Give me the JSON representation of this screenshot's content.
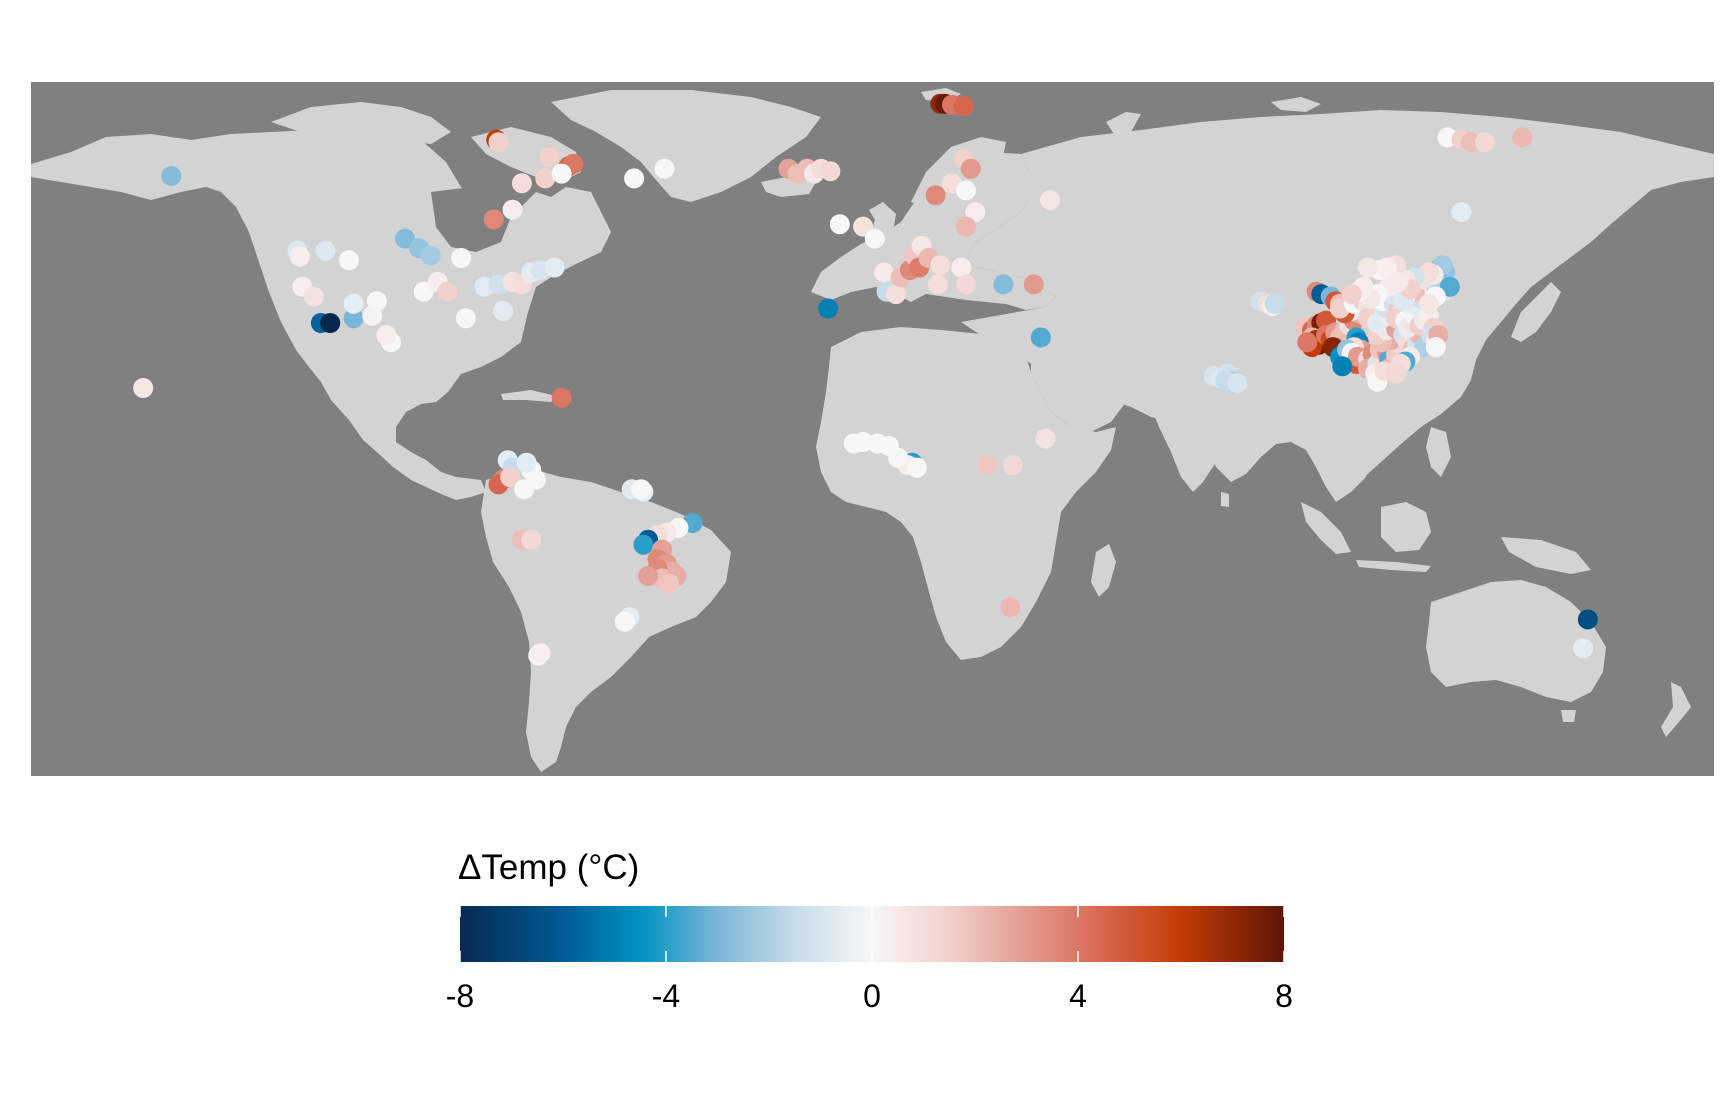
{
  "map": {
    "background_color": "#808080",
    "land_color": "#d3d3d3",
    "projection": "equirectangular",
    "lon_range": [
      -180,
      180
    ],
    "lat_range": [
      -60,
      84
    ]
  },
  "legend": {
    "title": "ΔTemp (°C)",
    "ticks": [
      "-8",
      "-4",
      "0",
      "4",
      "8"
    ],
    "range": [
      -8,
      8
    ],
    "stops": [
      {
        "value": -8,
        "color": "#08294f"
      },
      {
        "value": -6,
        "color": "#005b96"
      },
      {
        "value": -4.5,
        "color": "#0092c2"
      },
      {
        "value": -3,
        "color": "#7bb6d8"
      },
      {
        "value": -1.5,
        "color": "#c7dcea"
      },
      {
        "value": 0,
        "color": "#f7f7f7"
      },
      {
        "value": 1.5,
        "color": "#f2d0cc"
      },
      {
        "value": 3,
        "color": "#e29a8f"
      },
      {
        "value": 4.5,
        "color": "#d8664e"
      },
      {
        "value": 6,
        "color": "#c43c05"
      },
      {
        "value": 8,
        "color": "#5e1508"
      }
    ]
  },
  "points": [
    {
      "lon": -150,
      "lat": 64.5,
      "v": -2.8
    },
    {
      "lon": -156,
      "lat": 20.5,
      "v": 0.6
    },
    {
      "lon": -123,
      "lat": 49,
      "v": -0.8
    },
    {
      "lon": -122.5,
      "lat": 47.8,
      "v": 0.4
    },
    {
      "lon": -117,
      "lat": 49,
      "v": -0.8
    },
    {
      "lon": -112,
      "lat": 47,
      "v": 0
    },
    {
      "lon": -122,
      "lat": 41.5,
      "v": 0.4
    },
    {
      "lon": -119.5,
      "lat": 39.5,
      "v": 0.8
    },
    {
      "lon": -118,
      "lat": 34,
      "v": -5.8
    },
    {
      "lon": -116,
      "lat": 34,
      "v": -8
    },
    {
      "lon": -111,
      "lat": 35,
      "v": -3
    },
    {
      "lon": -111,
      "lat": 38,
      "v": -0.5
    },
    {
      "lon": -107,
      "lat": 35.5,
      "v": 0.2
    },
    {
      "lon": -106,
      "lat": 38.5,
      "v": 0
    },
    {
      "lon": -103,
      "lat": 30,
      "v": 0
    },
    {
      "lon": -104,
      "lat": 31.5,
      "v": 0.4
    },
    {
      "lon": -100,
      "lat": 51.5,
      "v": -2.8
    },
    {
      "lon": -97,
      "lat": 49.5,
      "v": -2.5
    },
    {
      "lon": -94.5,
      "lat": 48,
      "v": -2.2
    },
    {
      "lon": -96,
      "lat": 40.5,
      "v": 0
    },
    {
      "lon": -93,
      "lat": 42.5,
      "v": 0.4
    },
    {
      "lon": -91,
      "lat": 40.5,
      "v": 1.5
    },
    {
      "lon": -88,
      "lat": 47.5,
      "v": 0
    },
    {
      "lon": -87,
      "lat": 35,
      "v": 0
    },
    {
      "lon": -83,
      "lat": 41.5,
      "v": -0.7
    },
    {
      "lon": -80,
      "lat": 42,
      "v": -1.2
    },
    {
      "lon": -77,
      "lat": 42.5,
      "v": 0.8
    },
    {
      "lon": -75,
      "lat": 42,
      "v": 1
    },
    {
      "lon": -73,
      "lat": 44.5,
      "v": -0.5
    },
    {
      "lon": -71,
      "lat": 45,
      "v": -1
    },
    {
      "lon": -68,
      "lat": 45.5,
      "v": -0.6
    },
    {
      "lon": -79,
      "lat": 36.5,
      "v": -0.7
    },
    {
      "lon": -81,
      "lat": 55.5,
      "v": 3.5
    },
    {
      "lon": -77,
      "lat": 57.5,
      "v": 0.4
    },
    {
      "lon": -66.5,
      "lat": 18.5,
      "v": 4
    },
    {
      "lon": -75,
      "lat": 63,
      "v": 1
    },
    {
      "lon": -70,
      "lat": 64,
      "v": 1.5
    },
    {
      "lon": -65,
      "lat": 66.5,
      "v": 4.5
    },
    {
      "lon": -64,
      "lat": 67,
      "v": 4
    },
    {
      "lon": -66.5,
      "lat": 65,
      "v": 0
    },
    {
      "lon": -80.5,
      "lat": 72,
      "v": 6
    },
    {
      "lon": -80,
      "lat": 71.5,
      "v": 1.5
    },
    {
      "lon": -69,
      "lat": 68.5,
      "v": 1.5
    },
    {
      "lon": -51,
      "lat": 64,
      "v": 0
    },
    {
      "lon": -44.5,
      "lat": 66,
      "v": 0
    },
    {
      "lon": -18,
      "lat": 66,
      "v": 2.8
    },
    {
      "lon": -16,
      "lat": 65,
      "v": 2
    },
    {
      "lon": -14,
      "lat": 66,
      "v": 2
    },
    {
      "lon": -12.5,
      "lat": 65,
      "v": 0.5
    },
    {
      "lon": -11,
      "lat": 66,
      "v": 1
    },
    {
      "lon": -9,
      "lat": 65.5,
      "v": 1.2
    },
    {
      "lon": -9.5,
      "lat": 37,
      "v": -5
    },
    {
      "lon": -7,
      "lat": 54.5,
      "v": 0
    },
    {
      "lon": -2,
      "lat": 54,
      "v": 0.8
    },
    {
      "lon": 0.5,
      "lat": 51.5,
      "v": 0
    },
    {
      "lon": 2.5,
      "lat": 44.5,
      "v": 0.5
    },
    {
      "lon": 3,
      "lat": 40.5,
      "v": -1.5
    },
    {
      "lon": 5,
      "lat": 40,
      "v": 1
    },
    {
      "lon": 6,
      "lat": 43.5,
      "v": 2
    },
    {
      "lon": 8,
      "lat": 45,
      "v": 3.5
    },
    {
      "lon": 9,
      "lat": 48,
      "v": 1.8
    },
    {
      "lon": 10,
      "lat": 45.5,
      "v": 3.8
    },
    {
      "lon": 10.5,
      "lat": 50,
      "v": 0.6
    },
    {
      "lon": 12,
      "lat": 47.5,
      "v": 2.2
    },
    {
      "lon": 14,
      "lat": 42,
      "v": 1
    },
    {
      "lon": 14.5,
      "lat": 46,
      "v": 1
    },
    {
      "lon": 13.5,
      "lat": 60.5,
      "v": 3.5
    },
    {
      "lon": 17,
      "lat": 63,
      "v": 1
    },
    {
      "lon": 19.5,
      "lat": 68,
      "v": 1.5
    },
    {
      "lon": 21,
      "lat": 66,
      "v": 3
    },
    {
      "lon": 20,
      "lat": 61.5,
      "v": 0
    },
    {
      "lon": 22,
      "lat": 57,
      "v": 0.4
    },
    {
      "lon": 20,
      "lat": 54,
      "v": 2.2
    },
    {
      "lon": 19,
      "lat": 45.5,
      "v": 0.4
    },
    {
      "lon": 20,
      "lat": 42,
      "v": 1.2
    },
    {
      "lon": 28,
      "lat": 42,
      "v": -2.8
    },
    {
      "lon": 34.5,
      "lat": 42,
      "v": 3
    },
    {
      "lon": 38,
      "lat": 59.5,
      "v": 0.7
    },
    {
      "lon": 36,
      "lat": 31,
      "v": -3.5
    },
    {
      "lon": 14.5,
      "lat": 79.5,
      "v": 7
    },
    {
      "lon": 15.5,
      "lat": 79.5,
      "v": 7.8
    },
    {
      "lon": 17,
      "lat": 79.3,
      "v": 4
    },
    {
      "lon": 19.5,
      "lat": 79,
      "v": 4.5
    },
    {
      "lon": -4,
      "lat": 9,
      "v": 0
    },
    {
      "lon": -2,
      "lat": 9.3,
      "v": 0
    },
    {
      "lon": 1,
      "lat": 9,
      "v": 0
    },
    {
      "lon": 3.5,
      "lat": 8.5,
      "v": 0
    },
    {
      "lon": 8.5,
      "lat": 5,
      "v": -4
    },
    {
      "lon": 7.5,
      "lat": 4.5,
      "v": 0.4
    },
    {
      "lon": 5.5,
      "lat": 6,
      "v": 0
    },
    {
      "lon": 9.5,
      "lat": 4,
      "v": 0
    },
    {
      "lon": 24.5,
      "lat": 4.5,
      "v": 1.8
    },
    {
      "lon": 30,
      "lat": 4.5,
      "v": 1.2
    },
    {
      "lon": 37,
      "lat": 10,
      "v": 0.8
    },
    {
      "lon": 29.5,
      "lat": -25,
      "v": 2.2
    },
    {
      "lon": -78,
      "lat": 5.5,
      "v": -0.5
    },
    {
      "lon": -77,
      "lat": 4,
      "v": -1.5
    },
    {
      "lon": -79,
      "lat": 1.5,
      "v": 3.5
    },
    {
      "lon": -80,
      "lat": 0.5,
      "v": 4.5
    },
    {
      "lon": -77.5,
      "lat": 2,
      "v": 1.5
    },
    {
      "lon": -73,
      "lat": 3.5,
      "v": 0
    },
    {
      "lon": -72,
      "lat": 1.5,
      "v": 0
    },
    {
      "lon": -74.5,
      "lat": -0.5,
      "v": 0
    },
    {
      "lon": -74,
      "lat": 5,
      "v": -0.6
    },
    {
      "lon": -75,
      "lat": -11,
      "v": 2
    },
    {
      "lon": -73,
      "lat": -11,
      "v": 1.2
    },
    {
      "lon": -51.5,
      "lat": -0.5,
      "v": -0.7
    },
    {
      "lon": -49,
      "lat": -1,
      "v": -0.5
    },
    {
      "lon": -49.5,
      "lat": -0.5,
      "v": 0
    },
    {
      "lon": -38.5,
      "lat": -7.5,
      "v": -3.5
    },
    {
      "lon": -41.5,
      "lat": -8.5,
      "v": 0
    },
    {
      "lon": -44,
      "lat": -9.5,
      "v": 0.5
    },
    {
      "lon": -46,
      "lat": -10,
      "v": 1
    },
    {
      "lon": -48,
      "lat": -11,
      "v": -6
    },
    {
      "lon": -49,
      "lat": -12,
      "v": -4
    },
    {
      "lon": -45,
      "lat": -13,
      "v": 2.8
    },
    {
      "lon": -46,
      "lat": -15,
      "v": 3.5
    },
    {
      "lon": -44,
      "lat": -16,
      "v": 3
    },
    {
      "lon": -43,
      "lat": -17.5,
      "v": 2.5
    },
    {
      "lon": -46,
      "lat": -17,
      "v": 3.5
    },
    {
      "lon": -45,
      "lat": -19,
      "v": 2
    },
    {
      "lon": -42,
      "lat": -18.5,
      "v": 2.5
    },
    {
      "lon": -43.5,
      "lat": -20,
      "v": 1.8
    },
    {
      "lon": -48,
      "lat": -18.5,
      "v": 2.8
    },
    {
      "lon": -52,
      "lat": -27,
      "v": -0.6
    },
    {
      "lon": -53,
      "lat": -28,
      "v": 0
    },
    {
      "lon": -71.5,
      "lat": -35,
      "v": 0
    },
    {
      "lon": -71,
      "lat": -34.5,
      "v": 0.3
    },
    {
      "lon": 73,
      "lat": 23,
      "v": -1
    },
    {
      "lon": 74.5,
      "lat": 22.5,
      "v": -0.8
    },
    {
      "lon": 76,
      "lat": 23.5,
      "v": -1.2
    },
    {
      "lon": 77,
      "lat": 22,
      "v": -2
    },
    {
      "lon": 75.5,
      "lat": 22,
      "v": -1.5
    },
    {
      "lon": 78,
      "lat": 21.5,
      "v": -1
    },
    {
      "lon": 83,
      "lat": 38.5,
      "v": -1.2
    },
    {
      "lon": 84.5,
      "lat": 38,
      "v": 1
    },
    {
      "lon": 85.5,
      "lat": 37.5,
      "v": 0.4
    },
    {
      "lon": 86,
      "lat": 38,
      "v": -1.5
    },
    {
      "lon": 95,
      "lat": 40.5,
      "v": 3.5
    },
    {
      "lon": 96,
      "lat": 40,
      "v": -6
    },
    {
      "lon": 98,
      "lat": 39.5,
      "v": -3
    },
    {
      "lon": 99,
      "lat": 38.5,
      "v": 5
    },
    {
      "lon": 100,
      "lat": 38,
      "v": 2
    },
    {
      "lon": 92.5,
      "lat": 33,
      "v": 1.8
    },
    {
      "lon": 94,
      "lat": 32.5,
      "v": 4.5
    },
    {
      "lon": 95,
      "lat": 33.5,
      "v": 3.5
    },
    {
      "lon": 96,
      "lat": 34,
      "v": 7.5
    },
    {
      "lon": 97,
      "lat": 34.5,
      "v": 5
    },
    {
      "lon": 94,
      "lat": 31,
      "v": 2.2
    },
    {
      "lon": 95,
      "lat": 30.5,
      "v": 6.5
    },
    {
      "lon": 95.5,
      "lat": 29.5,
      "v": 7.5
    },
    {
      "lon": 94,
      "lat": 29,
      "v": 6
    },
    {
      "lon": 93,
      "lat": 30,
      "v": 4
    },
    {
      "lon": 97,
      "lat": 31.5,
      "v": 4
    },
    {
      "lon": 98,
      "lat": 30.5,
      "v": 5.5
    },
    {
      "lon": 99,
      "lat": 32,
      "v": 3
    },
    {
      "lon": 100,
      "lat": 31,
      "v": 2
    },
    {
      "lon": 101,
      "lat": 30,
      "v": 1
    },
    {
      "lon": 100,
      "lat": 29,
      "v": 3.5
    },
    {
      "lon": 98.5,
      "lat": 29,
      "v": 7.2
    },
    {
      "lon": 102,
      "lat": 31.5,
      "v": 3
    },
    {
      "lon": 101,
      "lat": 32.5,
      "v": 2
    },
    {
      "lon": 102,
      "lat": 33.5,
      "v": 1
    },
    {
      "lon": 103,
      "lat": 34.5,
      "v": 3.5
    },
    {
      "lon": 104,
      "lat": 36,
      "v": 2.5
    },
    {
      "lon": 102.5,
      "lat": 36.5,
      "v": -0.5
    },
    {
      "lon": 101,
      "lat": 36,
      "v": 5
    },
    {
      "lon": 100,
      "lat": 37,
      "v": 1.5
    },
    {
      "lon": 103,
      "lat": 38,
      "v": 0
    },
    {
      "lon": 105,
      "lat": 38.5,
      "v": 1.5
    },
    {
      "lon": 106,
      "lat": 37.5,
      "v": 0.8
    },
    {
      "lon": 107,
      "lat": 36,
      "v": -1
    },
    {
      "lon": 106,
      "lat": 35,
      "v": 1.5
    },
    {
      "lon": 103.5,
      "lat": 31,
      "v": -4
    },
    {
      "lon": 104,
      "lat": 30,
      "v": -5
    },
    {
      "lon": 104.5,
      "lat": 28.5,
      "v": 3
    },
    {
      "lon": 103,
      "lat": 29,
      "v": 1
    },
    {
      "lon": 102,
      "lat": 27,
      "v": -1.5
    },
    {
      "lon": 101,
      "lat": 26,
      "v": 2.5
    },
    {
      "lon": 100,
      "lat": 27,
      "v": -4.5
    },
    {
      "lon": 101.5,
      "lat": 28.5,
      "v": -2.5
    },
    {
      "lon": 102.5,
      "lat": 27.8,
      "v": 0
    },
    {
      "lon": 103.5,
      "lat": 25.5,
      "v": 5
    },
    {
      "lon": 103.8,
      "lat": 27,
      "v": 3
    },
    {
      "lon": 100.5,
      "lat": 25,
      "v": -5
    },
    {
      "lon": 106,
      "lat": 26.5,
      "v": 1.2
    },
    {
      "lon": 107,
      "lat": 27.5,
      "v": 3.5
    },
    {
      "lon": 106,
      "lat": 24.5,
      "v": 2.5
    },
    {
      "lon": 108,
      "lat": 25.5,
      "v": -1
    },
    {
      "lon": 107.5,
      "lat": 23.5,
      "v": 0.4
    },
    {
      "lon": 108,
      "lat": 21.8,
      "v": 0
    },
    {
      "lon": 109,
      "lat": 26.5,
      "v": 1
    },
    {
      "lon": 108.5,
      "lat": 28.5,
      "v": 1.8
    },
    {
      "lon": 110,
      "lat": 28,
      "v": 3.2
    },
    {
      "lon": 110.5,
      "lat": 26.5,
      "v": -3.5
    },
    {
      "lon": 111,
      "lat": 25,
      "v": 2.4
    },
    {
      "lon": 109.5,
      "lat": 24,
      "v": 1
    },
    {
      "lon": 112,
      "lat": 27.5,
      "v": 1.6
    },
    {
      "lon": 113,
      "lat": 29.5,
      "v": 1.2
    },
    {
      "lon": 111,
      "lat": 30.5,
      "v": 2.5
    },
    {
      "lon": 109,
      "lat": 30,
      "v": 2
    },
    {
      "lon": 108,
      "lat": 31.5,
      "v": 1.5
    },
    {
      "lon": 110,
      "lat": 32.5,
      "v": 0.6
    },
    {
      "lon": 112,
      "lat": 32.8,
      "v": 2.8
    },
    {
      "lon": 113.5,
      "lat": 31.5,
      "v": -1.2
    },
    {
      "lon": 114.5,
      "lat": 30,
      "v": 1
    },
    {
      "lon": 115.5,
      "lat": 28.5,
      "v": 2
    },
    {
      "lon": 116.5,
      "lat": 29.5,
      "v": -1
    },
    {
      "lon": 117,
      "lat": 31.5,
      "v": 2.2
    },
    {
      "lon": 118,
      "lat": 29,
      "v": -2
    },
    {
      "lon": 115,
      "lat": 27,
      "v": 0.5
    },
    {
      "lon": 114,
      "lat": 26,
      "v": -3.5
    },
    {
      "lon": 113,
      "lat": 25.5,
      "v": 1
    },
    {
      "lon": 112,
      "lat": 23.5,
      "v": 1.2
    },
    {
      "lon": 108,
      "lat": 34,
      "v": -0.6
    },
    {
      "lon": 109,
      "lat": 35,
      "v": -0.8
    },
    {
      "lon": 110.5,
      "lat": 35.5,
      "v": 0.5
    },
    {
      "lon": 110,
      "lat": 37,
      "v": -1.2
    },
    {
      "lon": 109,
      "lat": 38.5,
      "v": 0
    },
    {
      "lon": 111.5,
      "lat": 38,
      "v": -1.2
    },
    {
      "lon": 112.5,
      "lat": 37,
      "v": 1.8
    },
    {
      "lon": 113,
      "lat": 36,
      "v": 0.6
    },
    {
      "lon": 112,
      "lat": 35,
      "v": 1.5
    },
    {
      "lon": 114,
      "lat": 34.5,
      "v": 0
    },
    {
      "lon": 114.5,
      "lat": 33,
      "v": -0.5
    },
    {
      "lon": 115.5,
      "lat": 34,
      "v": 0.8
    },
    {
      "lon": 116,
      "lat": 35.5,
      "v": 0
    },
    {
      "lon": 117,
      "lat": 33.5,
      "v": 1.6
    },
    {
      "lon": 118,
      "lat": 34.5,
      "v": 0.5
    },
    {
      "lon": 117.5,
      "lat": 36.5,
      "v": -0.6
    },
    {
      "lon": 119,
      "lat": 35.5,
      "v": 0.4
    },
    {
      "lon": 120,
      "lat": 33,
      "v": 1.5
    },
    {
      "lon": 119.5,
      "lat": 31.5,
      "v": -1.2
    },
    {
      "lon": 120.5,
      "lat": 30.5,
      "v": 0.5
    },
    {
      "lon": 121,
      "lat": 31.5,
      "v": 2.5
    },
    {
      "lon": 120.5,
      "lat": 29,
      "v": 0
    },
    {
      "lon": 115,
      "lat": 38,
      "v": -0.5
    },
    {
      "lon": 116.5,
      "lat": 39.5,
      "v": 0.7
    },
    {
      "lon": 117.5,
      "lat": 39,
      "v": -1.2
    },
    {
      "lon": 118.5,
      "lat": 40,
      "v": -2.8
    },
    {
      "lon": 119,
      "lat": 41,
      "v": -1.5
    },
    {
      "lon": 117,
      "lat": 41.5,
      "v": 0.4
    },
    {
      "lon": 116,
      "lat": 40.5,
      "v": 2
    },
    {
      "lon": 114,
      "lat": 39.5,
      "v": 0.3
    },
    {
      "lon": 113,
      "lat": 40.5,
      "v": 0
    },
    {
      "lon": 112,
      "lat": 39.5,
      "v": 1.5
    },
    {
      "lon": 111,
      "lat": 40,
      "v": -1
    },
    {
      "lon": 113.5,
      "lat": 38.5,
      "v": -0.8
    },
    {
      "lon": 110.5,
      "lat": 41.5,
      "v": 0.5
    },
    {
      "lon": 108,
      "lat": 40,
      "v": 0
    },
    {
      "lon": 106.5,
      "lat": 39,
      "v": 0.6
    },
    {
      "lon": 104,
      "lat": 40.5,
      "v": 0
    },
    {
      "lon": 105,
      "lat": 41.5,
      "v": 0.4
    },
    {
      "lon": 102.5,
      "lat": 40,
      "v": 1.5
    },
    {
      "lon": 120,
      "lat": 42.5,
      "v": -0.5
    },
    {
      "lon": 121.5,
      "lat": 42,
      "v": -2.5
    },
    {
      "lon": 122,
      "lat": 40.5,
      "v": -1
    },
    {
      "lon": 120.5,
      "lat": 41.5,
      "v": -1.5
    },
    {
      "lon": 121,
      "lat": 43.5,
      "v": -2
    },
    {
      "lon": 122.5,
      "lat": 44.5,
      "v": -2.5
    },
    {
      "lon": 121.5,
      "lat": 45.5,
      "v": -3
    },
    {
      "lon": 122,
      "lat": 46,
      "v": -2.2
    },
    {
      "lon": 123.5,
      "lat": 41.5,
      "v": -3.5
    },
    {
      "lon": 120,
      "lat": 44,
      "v": 0.5
    },
    {
      "lon": 119,
      "lat": 44.5,
      "v": 1
    },
    {
      "lon": 117.5,
      "lat": 43,
      "v": 0.8
    },
    {
      "lon": 116,
      "lat": 43.5,
      "v": -1.2
    },
    {
      "lon": 114,
      "lat": 43,
      "v": 0.6
    },
    {
      "lon": 112,
      "lat": 46,
      "v": 1
    },
    {
      "lon": 108.5,
      "lat": 45,
      "v": 0
    },
    {
      "lon": 110,
      "lat": 45.5,
      "v": 0.4
    },
    {
      "lon": 106,
      "lat": 45.5,
      "v": 0.6
    },
    {
      "lon": 120.5,
      "lat": 39.5,
      "v": 0
    },
    {
      "lon": 115,
      "lat": 41,
      "v": 1.5
    },
    {
      "lon": 112.5,
      "lat": 42.5,
      "v": 0.5
    },
    {
      "lon": 119,
      "lat": 38,
      "v": 0.7
    },
    {
      "lon": 126,
      "lat": 57,
      "v": -0.6
    },
    {
      "lon": 123,
      "lat": 72.5,
      "v": 0
    },
    {
      "lon": 126,
      "lat": 72,
      "v": 1.5
    },
    {
      "lon": 128,
      "lat": 71.5,
      "v": 2
    },
    {
      "lon": 131,
      "lat": 71.5,
      "v": 1.2
    },
    {
      "lon": 139,
      "lat": 72.5,
      "v": 2.2
    },
    {
      "lon": 153,
      "lat": -27.5,
      "v": -6.5
    },
    {
      "lon": 152,
      "lat": -33.5,
      "v": -0.6
    }
  ]
}
